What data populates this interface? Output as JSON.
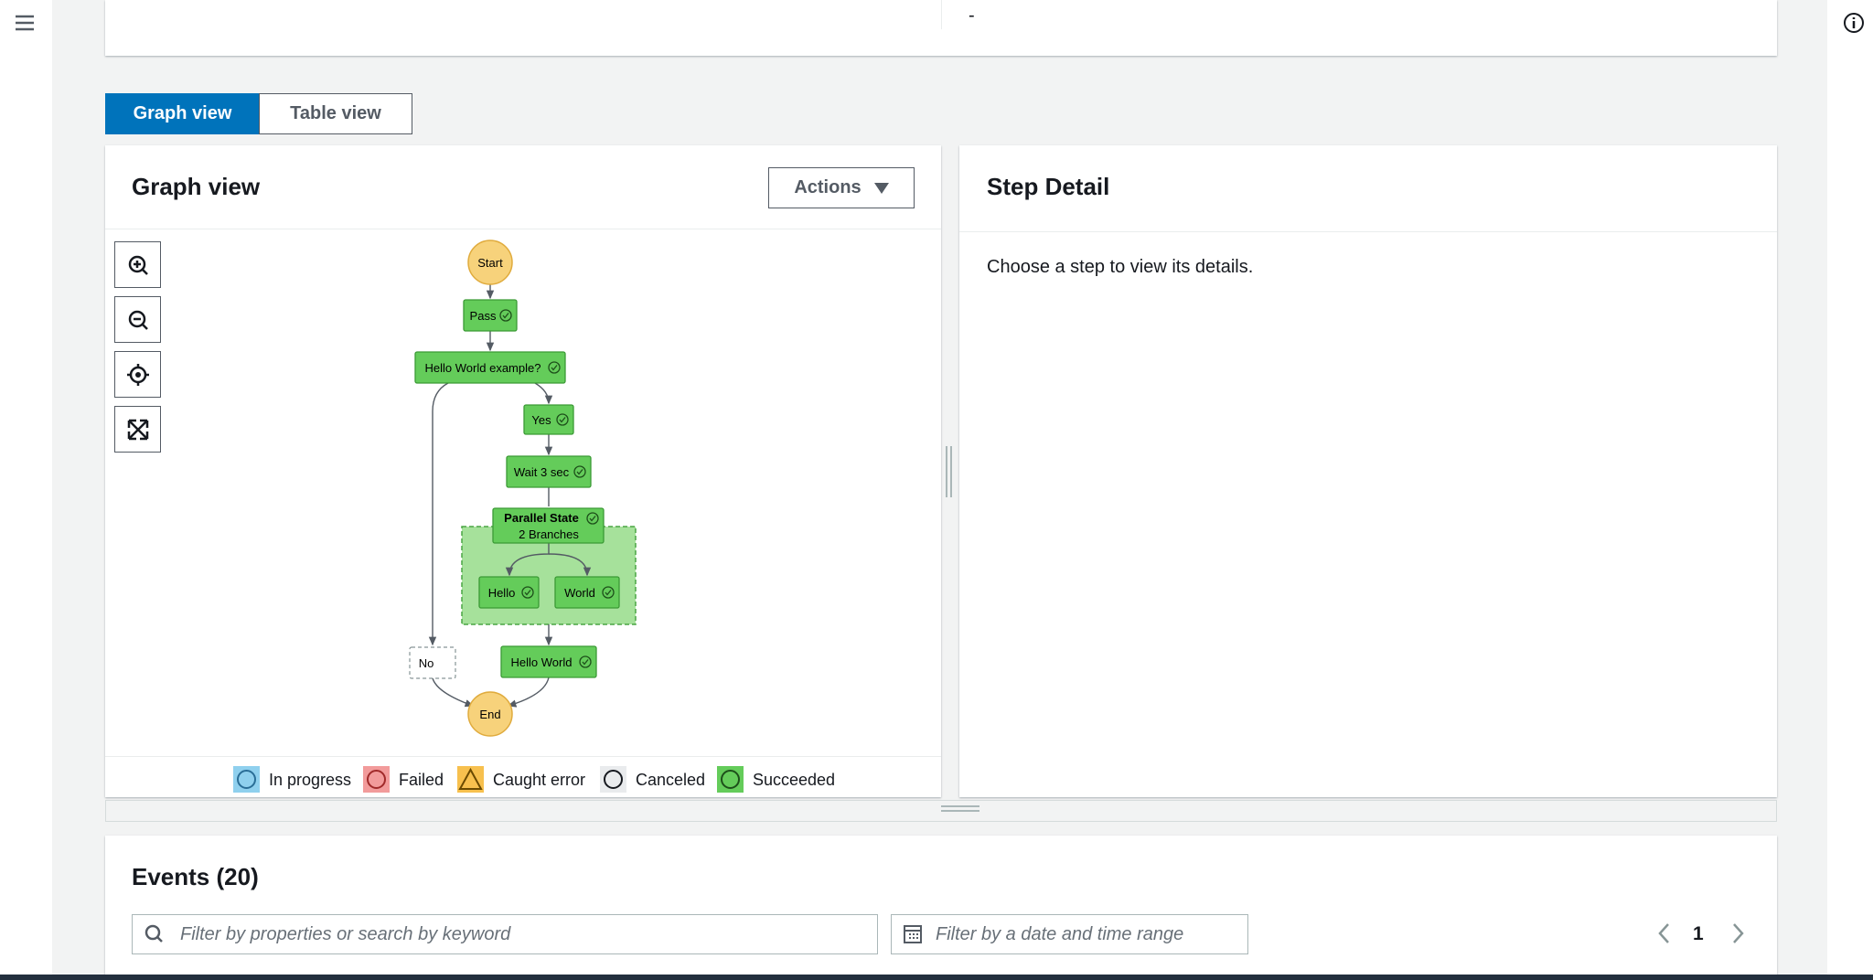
{
  "summary": {
    "value": "-"
  },
  "tabs": [
    "Graph view",
    "Table view"
  ],
  "graph_panel": {
    "title": "Graph view",
    "actions": "Actions",
    "nodes": [
      "Start",
      "Pass",
      "Hello World example?",
      "Yes",
      "Wait 3 sec",
      "Parallel State",
      "2 Branches",
      "Hello",
      "World",
      "No",
      "Hello World",
      "End"
    ],
    "legend": [
      "In progress",
      "Failed",
      "Caught error",
      "Canceled",
      "Succeeded"
    ]
  },
  "step_detail": {
    "title": "Step Detail",
    "message": "Choose a step to view its details."
  },
  "events": {
    "title": "Events (20)",
    "search_placeholder": "Filter by properties or search by keyword",
    "date_placeholder": "Filter by a date and time range",
    "page": 1
  }
}
